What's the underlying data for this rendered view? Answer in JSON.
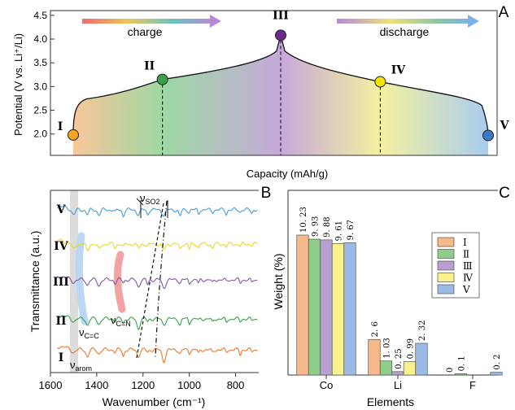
{
  "panels": {
    "A": "A",
    "B": "B",
    "C": "C"
  },
  "chart_data": [
    {
      "panel": "A",
      "type": "line",
      "xlabel": "Capacity (mAh/g)",
      "ylabel": "Potential (V vs. Li⁺/Li)",
      "ylim": [
        1.55,
        4.6
      ],
      "yticks": [
        "2.0",
        "2.5",
        "3.0",
        "3.5",
        "4.0",
        "4.5"
      ],
      "arrows": {
        "charge": "charge",
        "discharge": "discharge"
      },
      "colors": {
        "orange": "#f5a623",
        "green": "#3aa14a",
        "purple": "#6a2a8c",
        "yellow": "#f2e600",
        "blue": "#3a7bc8"
      },
      "points": [
        {
          "label": "I",
          "x": 0.0,
          "y": 1.98,
          "color": "#f5a623"
        },
        {
          "label": "II",
          "x": 0.215,
          "y": 3.15,
          "color": "#3aa14a"
        },
        {
          "label": "III",
          "x": 0.5,
          "y": 4.08,
          "color": "#6a2a8c"
        },
        {
          "label": "IV",
          "x": 0.74,
          "y": 3.1,
          "color": "#f2e600"
        },
        {
          "label": "V",
          "x": 1.0,
          "y": 1.97,
          "color": "#3a7bc8"
        }
      ]
    },
    {
      "panel": "B",
      "type": "line",
      "xlabel": "Wavenumber (cm⁻¹)",
      "ylabel": "Transmittance (a.u.)",
      "xlim": [
        1600,
        700
      ],
      "xticks": [
        "1600",
        "1400",
        "1200",
        "1000",
        "800"
      ],
      "series": [
        {
          "name": "V",
          "color": "#4a9ad4"
        },
        {
          "name": "IV",
          "color": "#e8d82a"
        },
        {
          "name": "III",
          "color": "#7d5aa8"
        },
        {
          "name": "II",
          "color": "#3aa14a"
        },
        {
          "name": "I",
          "color": "#e8772e"
        }
      ],
      "annotations": {
        "so2": "ν",
        "so2_sub": "SO2",
        "cc": "ν",
        "cc_sub": "C=C",
        "cn": "ν",
        "cn_sub": "C=N",
        "arom": "ν",
        "arom_sub": "arom"
      }
    },
    {
      "panel": "C",
      "type": "bar",
      "xlabel": "Elements",
      "ylabel": "Weight (%)",
      "categories": [
        "Co",
        "Li",
        "F"
      ],
      "series": [
        {
          "name": "Ⅰ",
          "color": "#f7b98a",
          "values": [
            10.23,
            2.6,
            0
          ],
          "labels": [
            "10. 23",
            "2. 6",
            "0"
          ]
        },
        {
          "name": "Ⅱ",
          "color": "#8fce8a",
          "values": [
            9.93,
            1.03,
            0.1
          ],
          "labels": [
            "9. 93",
            "1. 03",
            "0. 1"
          ]
        },
        {
          "name": "Ⅲ",
          "color": "#b89fd0",
          "values": [
            9.88,
            0.25,
            0
          ],
          "labels": [
            "9. 88",
            "0. 25",
            ""
          ]
        },
        {
          "name": "Ⅳ",
          "color": "#f9f28a",
          "values": [
            9.61,
            0.99,
            0
          ],
          "labels": [
            "9. 61",
            "0. 99",
            ""
          ]
        },
        {
          "name": "Ⅴ",
          "color": "#9cbae6",
          "values": [
            9.67,
            2.32,
            0.2
          ],
          "labels": [
            "9. 67",
            "2. 32",
            "0. 2"
          ]
        }
      ],
      "ylim": [
        0,
        13.5
      ],
      "legend": "right"
    }
  ]
}
